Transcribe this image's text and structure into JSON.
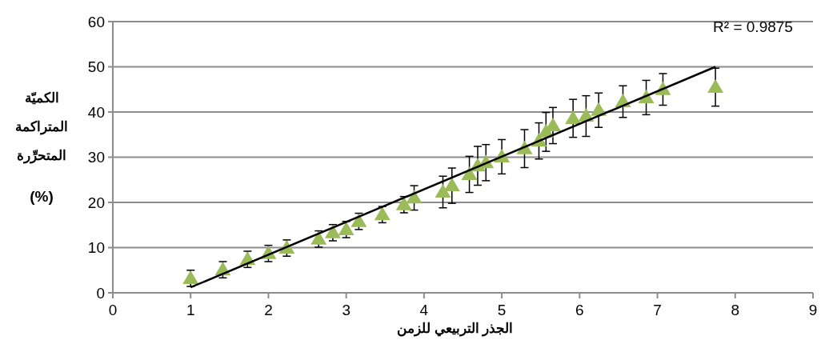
{
  "chart_data": {
    "type": "scatter",
    "xlabel": "الجذر التربيعي للزمن",
    "ylabel": "الكميّة المتراكمة المتحرِّرة (%)",
    "annotations": [
      "R² = 0.9875"
    ],
    "xlim": [
      0,
      9
    ],
    "xticks": [
      0,
      1,
      2,
      3,
      4,
      5,
      6,
      7,
      8,
      9
    ],
    "ylim": [
      0,
      60
    ],
    "yticks": [
      0,
      10,
      20,
      30,
      40,
      50,
      60
    ],
    "grid": "y",
    "series": [
      {
        "color": "#9bbb59",
        "marker": "triangle",
        "x": [
          1,
          1.414,
          1.732,
          2,
          2.236,
          2.646,
          2.828,
          3,
          3.162,
          3.464,
          3.742,
          3.873,
          4.243,
          4.359,
          4.583,
          4.69,
          4.796,
          5,
          5.292,
          5.477,
          5.568,
          5.657,
          5.916,
          6.083,
          6.245,
          6.557,
          6.856,
          7.071,
          7.746
        ],
        "values": [
          3.2,
          5.1,
          7.4,
          8.7,
          9.9,
          11.9,
          13.3,
          14,
          15.8,
          17.3,
          19.5,
          21,
          22.3,
          23.7,
          26.2,
          28.1,
          28.8,
          30.1,
          31.9,
          33.6,
          35.6,
          37,
          38.6,
          39.1,
          40.4,
          42.3,
          43.2,
          45,
          45.5
        ],
        "errors": [
          1.8,
          1.8,
          1.8,
          1.8,
          1.8,
          1.8,
          1.8,
          1.8,
          1.8,
          1.8,
          1.8,
          2.7,
          3.5,
          3.9,
          4,
          4.3,
          4,
          3.8,
          4.2,
          4,
          4.3,
          4,
          4.2,
          4.5,
          3.8,
          3.5,
          3.8,
          3.5,
          4.2
        ]
      },
      {
        "type": "line",
        "color": "#000000",
        "line_style": "solid",
        "x": [
          1,
          7.746
        ],
        "values": [
          1.2,
          50
        ]
      }
    ]
  }
}
